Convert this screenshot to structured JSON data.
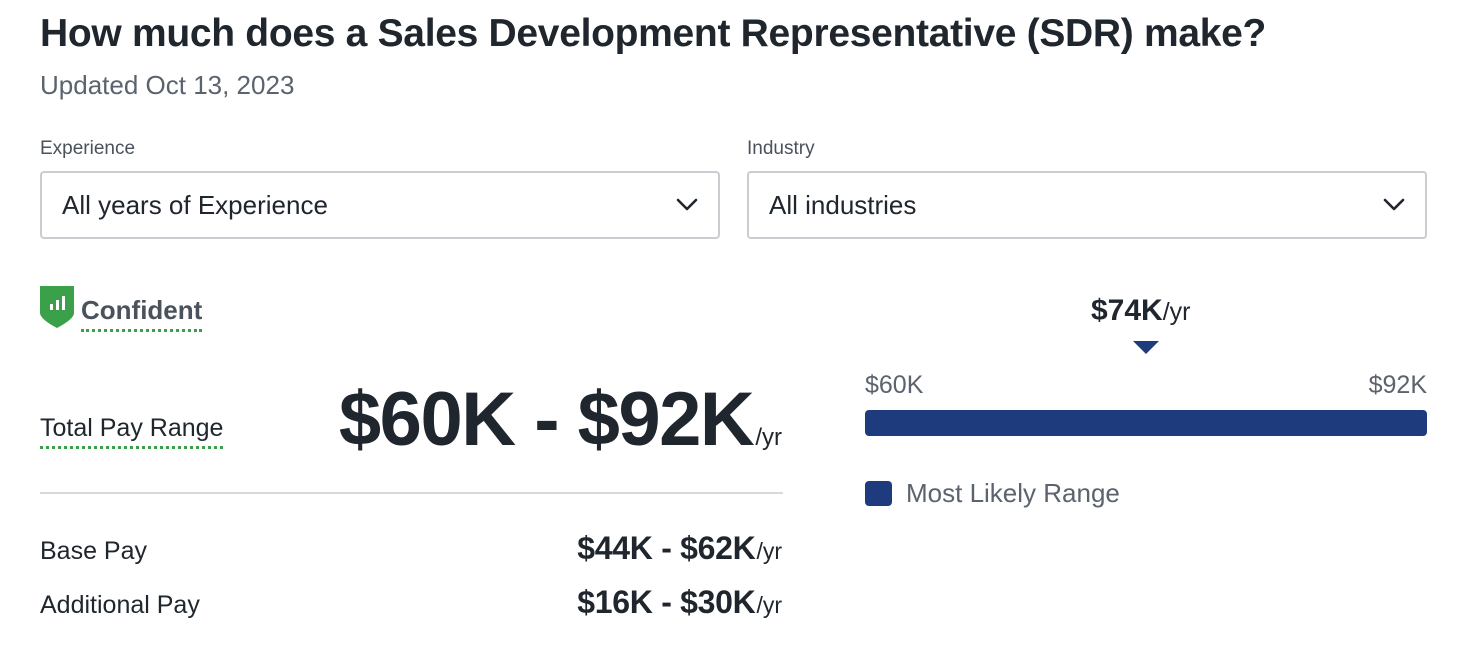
{
  "header": {
    "title": "How much does a Sales Development Representative (SDR) make?",
    "updated": "Updated Oct 13, 2023"
  },
  "filters": {
    "experience": {
      "label": "Experience",
      "value": "All years of Experience"
    },
    "industry": {
      "label": "Industry",
      "value": "All industries"
    }
  },
  "confidence": {
    "label": "Confident",
    "color": "#3aa04a"
  },
  "pay": {
    "total": {
      "label": "Total Pay Range",
      "range": "$60K - $92K",
      "unit": "/yr"
    },
    "base": {
      "label": "Base Pay",
      "range": "$44K - $62K",
      "unit": "/yr"
    },
    "additional": {
      "label": "Additional Pay",
      "range": "$16K - $30K",
      "unit": "/yr"
    }
  },
  "range_chart": {
    "median": "$74K",
    "median_unit": "/yr",
    "median_value": 74,
    "min_label": "$60K",
    "max_label": "$92K",
    "min_value": 60,
    "max_value": 92,
    "legend": "Most Likely Range",
    "bar_color": "#1e3c7d"
  }
}
